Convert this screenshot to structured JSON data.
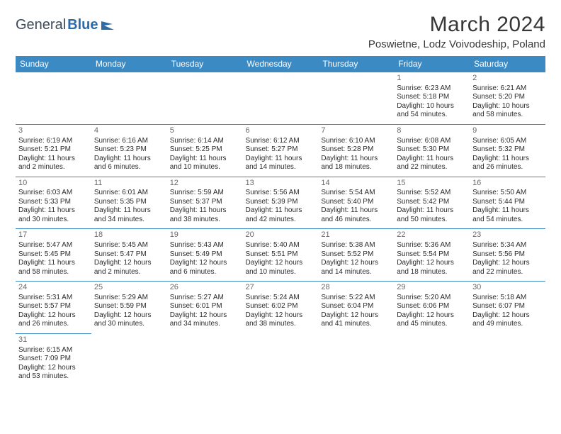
{
  "logo": {
    "text1": "General",
    "text2": "Blue"
  },
  "title": "March 2024",
  "location": "Poswietne, Lodz Voivodeship, Poland",
  "colors": {
    "header_bg": "#3b8ac4",
    "header_text": "#ffffff",
    "border": "#3b8ac4",
    "daynum": "#6a6a6a",
    "body_text": "#2b2b2b",
    "logo_gray": "#3b4a5a",
    "logo_blue": "#2d6ca8"
  },
  "weekdays": [
    "Sunday",
    "Monday",
    "Tuesday",
    "Wednesday",
    "Thursday",
    "Friday",
    "Saturday"
  ],
  "weeks": [
    [
      null,
      null,
      null,
      null,
      null,
      {
        "day": "1",
        "sunrise": "Sunrise: 6:23 AM",
        "sunset": "Sunset: 5:18 PM",
        "daylight": "Daylight: 10 hours and 54 minutes."
      },
      {
        "day": "2",
        "sunrise": "Sunrise: 6:21 AM",
        "sunset": "Sunset: 5:20 PM",
        "daylight": "Daylight: 10 hours and 58 minutes."
      }
    ],
    [
      {
        "day": "3",
        "sunrise": "Sunrise: 6:19 AM",
        "sunset": "Sunset: 5:21 PM",
        "daylight": "Daylight: 11 hours and 2 minutes."
      },
      {
        "day": "4",
        "sunrise": "Sunrise: 6:16 AM",
        "sunset": "Sunset: 5:23 PM",
        "daylight": "Daylight: 11 hours and 6 minutes."
      },
      {
        "day": "5",
        "sunrise": "Sunrise: 6:14 AM",
        "sunset": "Sunset: 5:25 PM",
        "daylight": "Daylight: 11 hours and 10 minutes."
      },
      {
        "day": "6",
        "sunrise": "Sunrise: 6:12 AM",
        "sunset": "Sunset: 5:27 PM",
        "daylight": "Daylight: 11 hours and 14 minutes."
      },
      {
        "day": "7",
        "sunrise": "Sunrise: 6:10 AM",
        "sunset": "Sunset: 5:28 PM",
        "daylight": "Daylight: 11 hours and 18 minutes."
      },
      {
        "day": "8",
        "sunrise": "Sunrise: 6:08 AM",
        "sunset": "Sunset: 5:30 PM",
        "daylight": "Daylight: 11 hours and 22 minutes."
      },
      {
        "day": "9",
        "sunrise": "Sunrise: 6:05 AM",
        "sunset": "Sunset: 5:32 PM",
        "daylight": "Daylight: 11 hours and 26 minutes."
      }
    ],
    [
      {
        "day": "10",
        "sunrise": "Sunrise: 6:03 AM",
        "sunset": "Sunset: 5:33 PM",
        "daylight": "Daylight: 11 hours and 30 minutes."
      },
      {
        "day": "11",
        "sunrise": "Sunrise: 6:01 AM",
        "sunset": "Sunset: 5:35 PM",
        "daylight": "Daylight: 11 hours and 34 minutes."
      },
      {
        "day": "12",
        "sunrise": "Sunrise: 5:59 AM",
        "sunset": "Sunset: 5:37 PM",
        "daylight": "Daylight: 11 hours and 38 minutes."
      },
      {
        "day": "13",
        "sunrise": "Sunrise: 5:56 AM",
        "sunset": "Sunset: 5:39 PM",
        "daylight": "Daylight: 11 hours and 42 minutes."
      },
      {
        "day": "14",
        "sunrise": "Sunrise: 5:54 AM",
        "sunset": "Sunset: 5:40 PM",
        "daylight": "Daylight: 11 hours and 46 minutes."
      },
      {
        "day": "15",
        "sunrise": "Sunrise: 5:52 AM",
        "sunset": "Sunset: 5:42 PM",
        "daylight": "Daylight: 11 hours and 50 minutes."
      },
      {
        "day": "16",
        "sunrise": "Sunrise: 5:50 AM",
        "sunset": "Sunset: 5:44 PM",
        "daylight": "Daylight: 11 hours and 54 minutes."
      }
    ],
    [
      {
        "day": "17",
        "sunrise": "Sunrise: 5:47 AM",
        "sunset": "Sunset: 5:45 PM",
        "daylight": "Daylight: 11 hours and 58 minutes."
      },
      {
        "day": "18",
        "sunrise": "Sunrise: 5:45 AM",
        "sunset": "Sunset: 5:47 PM",
        "daylight": "Daylight: 12 hours and 2 minutes."
      },
      {
        "day": "19",
        "sunrise": "Sunrise: 5:43 AM",
        "sunset": "Sunset: 5:49 PM",
        "daylight": "Daylight: 12 hours and 6 minutes."
      },
      {
        "day": "20",
        "sunrise": "Sunrise: 5:40 AM",
        "sunset": "Sunset: 5:51 PM",
        "daylight": "Daylight: 12 hours and 10 minutes."
      },
      {
        "day": "21",
        "sunrise": "Sunrise: 5:38 AM",
        "sunset": "Sunset: 5:52 PM",
        "daylight": "Daylight: 12 hours and 14 minutes."
      },
      {
        "day": "22",
        "sunrise": "Sunrise: 5:36 AM",
        "sunset": "Sunset: 5:54 PM",
        "daylight": "Daylight: 12 hours and 18 minutes."
      },
      {
        "day": "23",
        "sunrise": "Sunrise: 5:34 AM",
        "sunset": "Sunset: 5:56 PM",
        "daylight": "Daylight: 12 hours and 22 minutes."
      }
    ],
    [
      {
        "day": "24",
        "sunrise": "Sunrise: 5:31 AM",
        "sunset": "Sunset: 5:57 PM",
        "daylight": "Daylight: 12 hours and 26 minutes."
      },
      {
        "day": "25",
        "sunrise": "Sunrise: 5:29 AM",
        "sunset": "Sunset: 5:59 PM",
        "daylight": "Daylight: 12 hours and 30 minutes."
      },
      {
        "day": "26",
        "sunrise": "Sunrise: 5:27 AM",
        "sunset": "Sunset: 6:01 PM",
        "daylight": "Daylight: 12 hours and 34 minutes."
      },
      {
        "day": "27",
        "sunrise": "Sunrise: 5:24 AM",
        "sunset": "Sunset: 6:02 PM",
        "daylight": "Daylight: 12 hours and 38 minutes."
      },
      {
        "day": "28",
        "sunrise": "Sunrise: 5:22 AM",
        "sunset": "Sunset: 6:04 PM",
        "daylight": "Daylight: 12 hours and 41 minutes."
      },
      {
        "day": "29",
        "sunrise": "Sunrise: 5:20 AM",
        "sunset": "Sunset: 6:06 PM",
        "daylight": "Daylight: 12 hours and 45 minutes."
      },
      {
        "day": "30",
        "sunrise": "Sunrise: 5:18 AM",
        "sunset": "Sunset: 6:07 PM",
        "daylight": "Daylight: 12 hours and 49 minutes."
      }
    ],
    [
      {
        "day": "31",
        "sunrise": "Sunrise: 6:15 AM",
        "sunset": "Sunset: 7:09 PM",
        "daylight": "Daylight: 12 hours and 53 minutes."
      },
      null,
      null,
      null,
      null,
      null,
      null
    ]
  ]
}
